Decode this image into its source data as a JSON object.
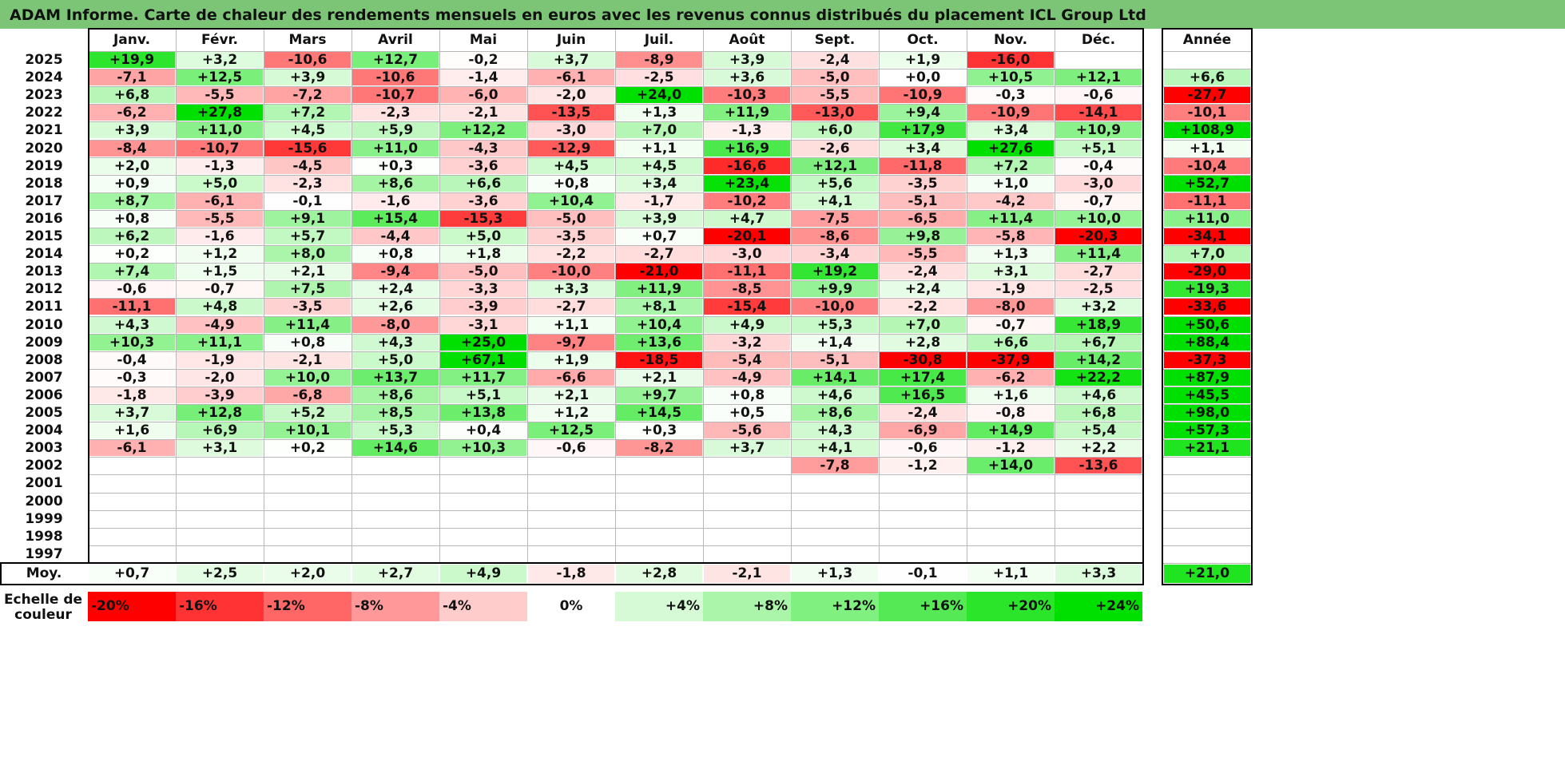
{
  "title": "ADAM Informe. Carte de chaleur des rendements mensuels en euros avec les revenus connus distribués du placement ICL Group Ltd",
  "colors": {
    "title_bar": "#7cc576",
    "negative_max": "#ff0000",
    "positive_max": "#00e000",
    "neutral": "#ffffff",
    "grid": "#b8b8b8",
    "frame": "#000000"
  },
  "chart_data": {
    "type": "heatmap",
    "title": "ADAM Informe. Carte de chaleur des rendements mensuels en euros avec les revenus connus distribués du placement ICL Group Ltd",
    "months": [
      "Janv.",
      "Févr.",
      "Mars",
      "Avril",
      "Mai",
      "Juin",
      "Juil.",
      "Août",
      "Sept.",
      "Oct.",
      "Nov.",
      "Déc."
    ],
    "year_header": "Année",
    "rows": [
      {
        "year": "2025",
        "values": [
          "+19,9",
          "+3,2",
          "-10,6",
          "+12,7",
          "-0,2",
          "+3,7",
          "-8,9",
          "+3,9",
          "-2,4",
          "+1,9",
          "-16,0",
          ""
        ],
        "annual": ""
      },
      {
        "year": "2024",
        "values": [
          "-7,1",
          "+12,5",
          "+3,9",
          "-10,6",
          "-1,4",
          "-6,1",
          "-2,5",
          "+3,6",
          "-5,0",
          "+0,0",
          "+10,5",
          "+12,1"
        ],
        "annual": "+6,6"
      },
      {
        "year": "2023",
        "values": [
          "+6,8",
          "-5,5",
          "-7,2",
          "-10,7",
          "-6,0",
          "-2,0",
          "+24,0",
          "-10,3",
          "-5,5",
          "-10,9",
          "-0,3",
          "-0,6"
        ],
        "annual": "-27,7"
      },
      {
        "year": "2022",
        "values": [
          "-6,2",
          "+27,8",
          "+7,2",
          "-2,3",
          "-2,1",
          "-13,5",
          "+1,3",
          "+11,9",
          "-13,0",
          "+9,4",
          "-10,9",
          "-14,1"
        ],
        "annual": "-10,1"
      },
      {
        "year": "2021",
        "values": [
          "+3,9",
          "+11,0",
          "+4,5",
          "+5,9",
          "+12,2",
          "-3,0",
          "+7,0",
          "-1,3",
          "+6,0",
          "+17,9",
          "+3,4",
          "+10,9"
        ],
        "annual": "+108,9"
      },
      {
        "year": "2020",
        "values": [
          "-8,4",
          "-10,7",
          "-15,6",
          "+11,0",
          "-4,3",
          "-12,9",
          "+1,1",
          "+16,9",
          "-2,6",
          "+3,4",
          "+27,6",
          "+5,1"
        ],
        "annual": "+1,1"
      },
      {
        "year": "2019",
        "values": [
          "+2,0",
          "-1,3",
          "-4,5",
          "+0,3",
          "-3,6",
          "+4,5",
          "+4,5",
          "-16,6",
          "+12,1",
          "-11,8",
          "+7,2",
          "-0,4"
        ],
        "annual": "-10,4"
      },
      {
        "year": "2018",
        "values": [
          "+0,9",
          "+5,0",
          "-2,3",
          "+8,6",
          "+6,6",
          "+0,8",
          "+3,4",
          "+23,4",
          "+5,6",
          "-3,5",
          "+1,0",
          "-3,0"
        ],
        "annual": "+52,7"
      },
      {
        "year": "2017",
        "values": [
          "+8,7",
          "-6,1",
          "-0,1",
          "-1,6",
          "-3,6",
          "+10,4",
          "-1,7",
          "-10,2",
          "+4,1",
          "-5,1",
          "-4,2",
          "-0,7"
        ],
        "annual": "-11,1"
      },
      {
        "year": "2016",
        "values": [
          "+0,8",
          "-5,5",
          "+9,1",
          "+15,4",
          "-15,3",
          "-5,0",
          "+3,9",
          "+4,7",
          "-7,5",
          "-6,5",
          "+11,4",
          "+10,0"
        ],
        "annual": "+11,0"
      },
      {
        "year": "2015",
        "values": [
          "+6,2",
          "-1,6",
          "+5,7",
          "-4,4",
          "+5,0",
          "-3,5",
          "+0,7",
          "-20,1",
          "-8,6",
          "+9,8",
          "-5,8",
          "-20,3"
        ],
        "annual": "-34,1"
      },
      {
        "year": "2014",
        "values": [
          "+0,2",
          "+1,2",
          "+8,0",
          "+0,8",
          "+1,8",
          "-2,2",
          "-2,7",
          "-3,0",
          "-3,4",
          "-5,5",
          "+1,3",
          "+11,4"
        ],
        "annual": "+7,0"
      },
      {
        "year": "2013",
        "values": [
          "+7,4",
          "+1,5",
          "+2,1",
          "-9,4",
          "-5,0",
          "-10,0",
          "-21,0",
          "-11,1",
          "+19,2",
          "-2,4",
          "+3,1",
          "-2,7"
        ],
        "annual": "-29,0"
      },
      {
        "year": "2012",
        "values": [
          "-0,6",
          "-0,7",
          "+7,5",
          "+2,4",
          "-3,3",
          "+3,3",
          "+11,9",
          "-8,5",
          "+9,9",
          "+2,4",
          "-1,9",
          "-2,5"
        ],
        "annual": "+19,3"
      },
      {
        "year": "2011",
        "values": [
          "-11,1",
          "+4,8",
          "-3,5",
          "+2,6",
          "-3,9",
          "-2,7",
          "+8,1",
          "-15,4",
          "-10,0",
          "-2,2",
          "-8,0",
          "+3,2"
        ],
        "annual": "-33,6"
      },
      {
        "year": "2010",
        "values": [
          "+4,3",
          "-4,9",
          "+11,4",
          "-8,0",
          "-3,1",
          "+1,1",
          "+10,4",
          "+4,9",
          "+5,3",
          "+7,0",
          "-0,7",
          "+18,9"
        ],
        "annual": "+50,6"
      },
      {
        "year": "2009",
        "values": [
          "+10,3",
          "+11,1",
          "+0,8",
          "+4,3",
          "+25,0",
          "-9,7",
          "+13,6",
          "-3,2",
          "+1,4",
          "+2,8",
          "+6,6",
          "+6,7"
        ],
        "annual": "+88,4"
      },
      {
        "year": "2008",
        "values": [
          "-0,4",
          "-1,9",
          "-2,1",
          "+5,0",
          "+67,1",
          "+1,9",
          "-18,5",
          "-5,4",
          "-5,1",
          "-30,8",
          "-37,9",
          "+14,2"
        ],
        "annual": "-37,3"
      },
      {
        "year": "2007",
        "values": [
          "-0,3",
          "-2,0",
          "+10,0",
          "+13,7",
          "+11,7",
          "-6,6",
          "+2,1",
          "-4,9",
          "+14,1",
          "+17,4",
          "-6,2",
          "+22,2"
        ],
        "annual": "+87,9"
      },
      {
        "year": "2006",
        "values": [
          "-1,8",
          "-3,9",
          "-6,8",
          "+8,6",
          "+5,1",
          "+2,1",
          "+9,7",
          "+0,8",
          "+4,6",
          "+16,5",
          "+1,6",
          "+4,6"
        ],
        "annual": "+45,5"
      },
      {
        "year": "2005",
        "values": [
          "+3,7",
          "+12,8",
          "+5,2",
          "+8,5",
          "+13,8",
          "+1,2",
          "+14,5",
          "+0,5",
          "+8,6",
          "-2,4",
          "-0,8",
          "+6,8"
        ],
        "annual": "+98,0"
      },
      {
        "year": "2004",
        "values": [
          "+1,6",
          "+6,9",
          "+10,1",
          "+5,3",
          "+0,4",
          "+12,5",
          "+0,3",
          "-5,6",
          "+4,3",
          "-6,9",
          "+14,9",
          "+5,4"
        ],
        "annual": "+57,3"
      },
      {
        "year": "2003",
        "values": [
          "-6,1",
          "+3,1",
          "+0,2",
          "+14,6",
          "+10,3",
          "-0,6",
          "-8,2",
          "+3,7",
          "+4,1",
          "-0,6",
          "-1,2",
          "+2,2"
        ],
        "annual": "+21,1"
      },
      {
        "year": "2002",
        "values": [
          "",
          "",
          "",
          "",
          "",
          "",
          "",
          "",
          "-7,8",
          "-1,2",
          "+14,0",
          "-13,6"
        ],
        "annual": ""
      },
      {
        "year": "2001",
        "values": [
          "",
          "",
          "",
          "",
          "",
          "",
          "",
          "",
          "",
          "",
          "",
          ""
        ],
        "annual": ""
      },
      {
        "year": "2000",
        "values": [
          "",
          "",
          "",
          "",
          "",
          "",
          "",
          "",
          "",
          "",
          "",
          ""
        ],
        "annual": ""
      },
      {
        "year": "1999",
        "values": [
          "",
          "",
          "",
          "",
          "",
          "",
          "",
          "",
          "",
          "",
          "",
          ""
        ],
        "annual": ""
      },
      {
        "year": "1998",
        "values": [
          "",
          "",
          "",
          "",
          "",
          "",
          "",
          "",
          "",
          "",
          "",
          ""
        ],
        "annual": ""
      },
      {
        "year": "1997",
        "values": [
          "",
          "",
          "",
          "",
          "",
          "",
          "",
          "",
          "",
          "",
          "",
          ""
        ],
        "annual": ""
      }
    ],
    "average_label": "Moy.",
    "averages": [
      "+0,7",
      "+2,5",
      "+2,0",
      "+2,7",
      "+4,9",
      "-1,8",
      "+2,8",
      "-2,1",
      "+1,3",
      "-0,1",
      "+1,1",
      "+3,3"
    ],
    "average_annual": "+21,0",
    "scale_label": "Echelle de couleur",
    "scale_labels": [
      "-20%",
      "-16%",
      "-12%",
      "-8%",
      "-4%",
      "0%",
      "+4%",
      "+8%",
      "+12%",
      "+16%",
      "+20%",
      "+24%"
    ],
    "scale_values": [
      -20,
      -16,
      -12,
      -8,
      -4,
      0,
      4,
      8,
      12,
      16,
      20,
      24
    ]
  }
}
